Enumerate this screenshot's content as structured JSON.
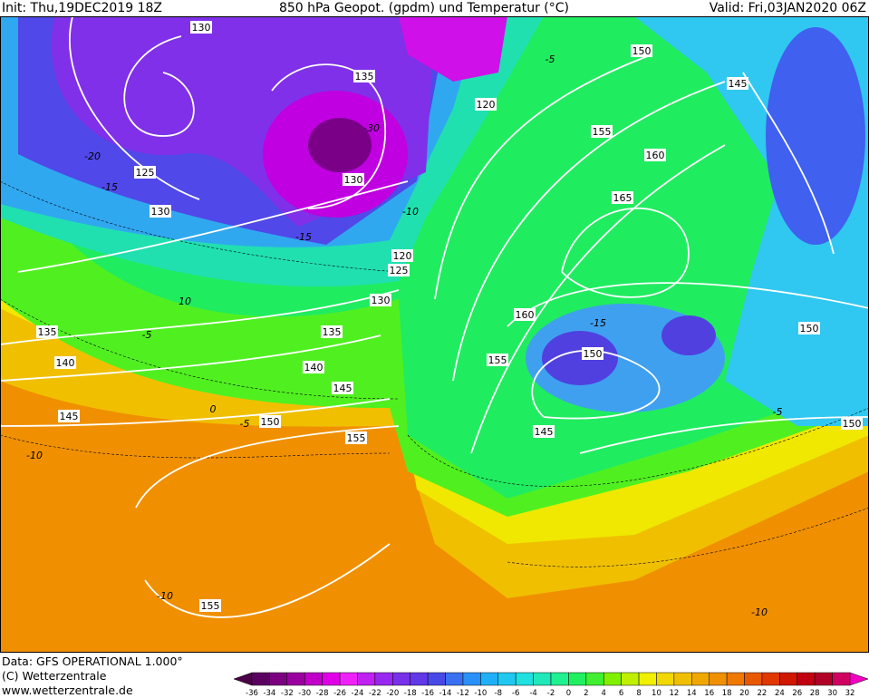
{
  "header": {
    "init": "Init: Thu,19DEC2019 18Z",
    "title": "850 hPa Geopot. (gpdm) und Temperatur (°C)",
    "valid": "Valid: Fri,03JAN2020 06Z"
  },
  "map": {
    "geopotential_labels": [
      130,
      135,
      120,
      150,
      145,
      155,
      160,
      165,
      125,
      130,
      130,
      120,
      125,
      130,
      135,
      135,
      140,
      140,
      145,
      145,
      150,
      155,
      155,
      160,
      150,
      145,
      150,
      150,
      155
    ],
    "temperature_labels": [
      -30,
      -20,
      -15,
      -10,
      -15,
      -5,
      10,
      -5,
      0,
      -5,
      -10,
      -10,
      -10,
      -15,
      -5
    ]
  },
  "footer": {
    "data_source": "Data: GFS OPERATIONAL 1.000°",
    "copyright": "(C) Wetterzentrale",
    "website": "www.wetterzentrale.de"
  },
  "colorbar": {
    "ticks": [
      -36,
      -34,
      -32,
      -30,
      -28,
      -26,
      -24,
      -22,
      -20,
      -18,
      -16,
      -14,
      -12,
      -10,
      -8,
      -6,
      -4,
      -2,
      0,
      2,
      4,
      6,
      8,
      10,
      12,
      14,
      16,
      18,
      20,
      22,
      24,
      26,
      28,
      30,
      32
    ],
    "colors": [
      "#4a0048",
      "#5a0060",
      "#7a0080",
      "#9a00a0",
      "#c000c8",
      "#e000e8",
      "#f020f8",
      "#c020f0",
      "#9828f0",
      "#7830e8",
      "#6038e8",
      "#4848e8",
      "#3870f0",
      "#2890f8",
      "#20b0f8",
      "#20c8f0",
      "#20e0e0",
      "#20e8b8",
      "#20f090",
      "#20f060",
      "#40f030",
      "#80f000",
      "#c0f000",
      "#f0f000",
      "#f0d800",
      "#f0c000",
      "#f0a800",
      "#f09000",
      "#f07800",
      "#e85800",
      "#e03800",
      "#d01800",
      "#c00010",
      "#b00028",
      "#d00060",
      "#f000c0"
    ]
  }
}
